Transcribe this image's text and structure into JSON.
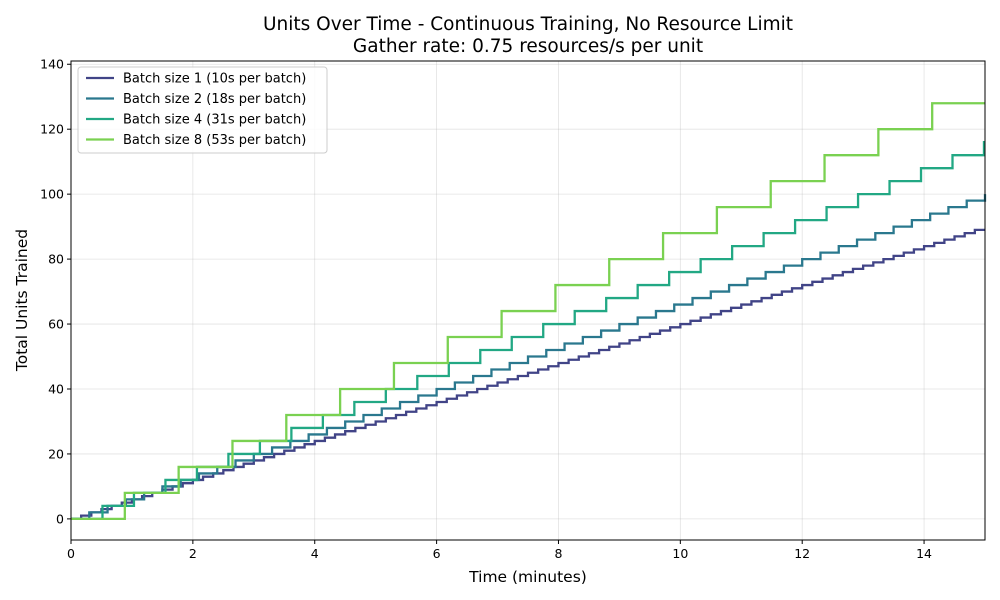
{
  "chart_data": {
    "type": "line",
    "step": "post",
    "title": "Units Over Time - Continuous Training, No Resource Limit",
    "subtitle": "Gather rate: 0.75 resources/s per unit",
    "xlabel": "Time (minutes)",
    "ylabel": "Total Units Trained",
    "xlim": [
      0,
      15
    ],
    "ylim": [
      -6.5,
      141
    ],
    "xticks": [
      0,
      2,
      4,
      6,
      8,
      10,
      12,
      14
    ],
    "yticks": [
      0,
      20,
      40,
      60,
      80,
      100,
      120,
      140
    ],
    "grid": true,
    "legend_position": "upper-left",
    "series": [
      {
        "name": "Batch size 1 (10s per batch)",
        "color": "#414487",
        "batch": 1,
        "interval_min": 0.1666667,
        "start_min": 0.1666667
      },
      {
        "name": "Batch size 2 (18s per batch)",
        "color": "#2a788e",
        "batch": 2,
        "interval_min": 0.3,
        "start_min": 0.3
      },
      {
        "name": "Batch size 4 (31s per batch)",
        "color": "#22a884",
        "batch": 4,
        "interval_min": 0.5166667,
        "start_min": 0.5166667
      },
      {
        "name": "Batch size 8 (53s per batch)",
        "color": "#7ad151",
        "batch": 8,
        "interval_min": 0.8833333,
        "start_min": 0.8833333
      }
    ]
  }
}
